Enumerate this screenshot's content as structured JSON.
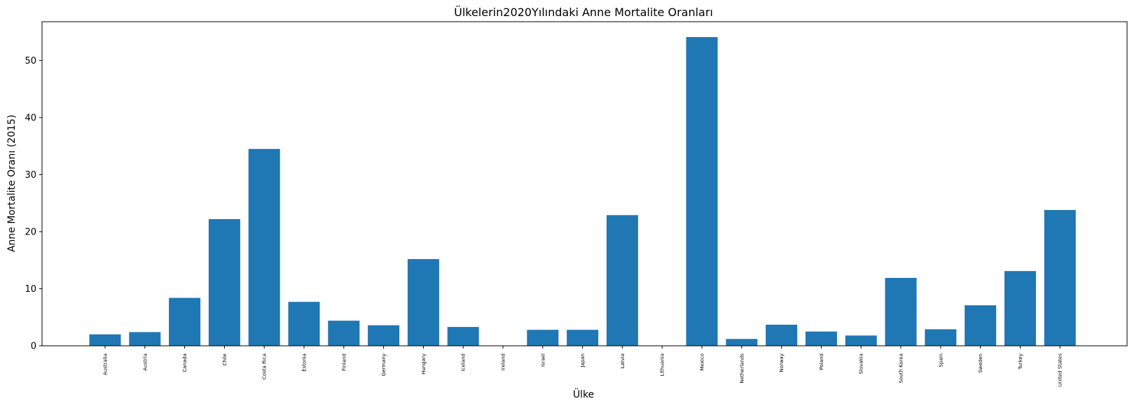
{
  "chart_data": {
    "type": "bar",
    "title": "Ülkelerin2020Yılındaki Anne Mortalite Oranları",
    "xlabel": "Ülke",
    "ylabel": "Anne Mortalite Oranı (2015)",
    "ylim": [
      0,
      56.8
    ],
    "yticks": [
      0,
      10,
      20,
      30,
      40,
      50
    ],
    "grid": false,
    "bar_color": "#1f77b4",
    "categories": [
      "Australia",
      "Austria",
      "Canada",
      "Chile",
      "Costa Rica",
      "Estonia",
      "Finland",
      "Germany",
      "Hungary",
      "Iceland",
      "Ireland",
      "Israel",
      "Japan",
      "Latvia",
      "Lithuania",
      "Mexico",
      "Netherlands",
      "Norway",
      "Poland",
      "Slovakia",
      "South Korea",
      "Spain",
      "Sweden",
      "Turkey",
      "United States"
    ],
    "values": [
      2.0,
      2.4,
      8.4,
      22.2,
      34.5,
      7.7,
      4.4,
      3.6,
      15.2,
      3.3,
      0,
      2.8,
      2.8,
      22.9,
      0,
      54.1,
      1.2,
      3.7,
      2.5,
      1.8,
      11.9,
      2.9,
      7.1,
      13.1,
      23.8
    ]
  }
}
